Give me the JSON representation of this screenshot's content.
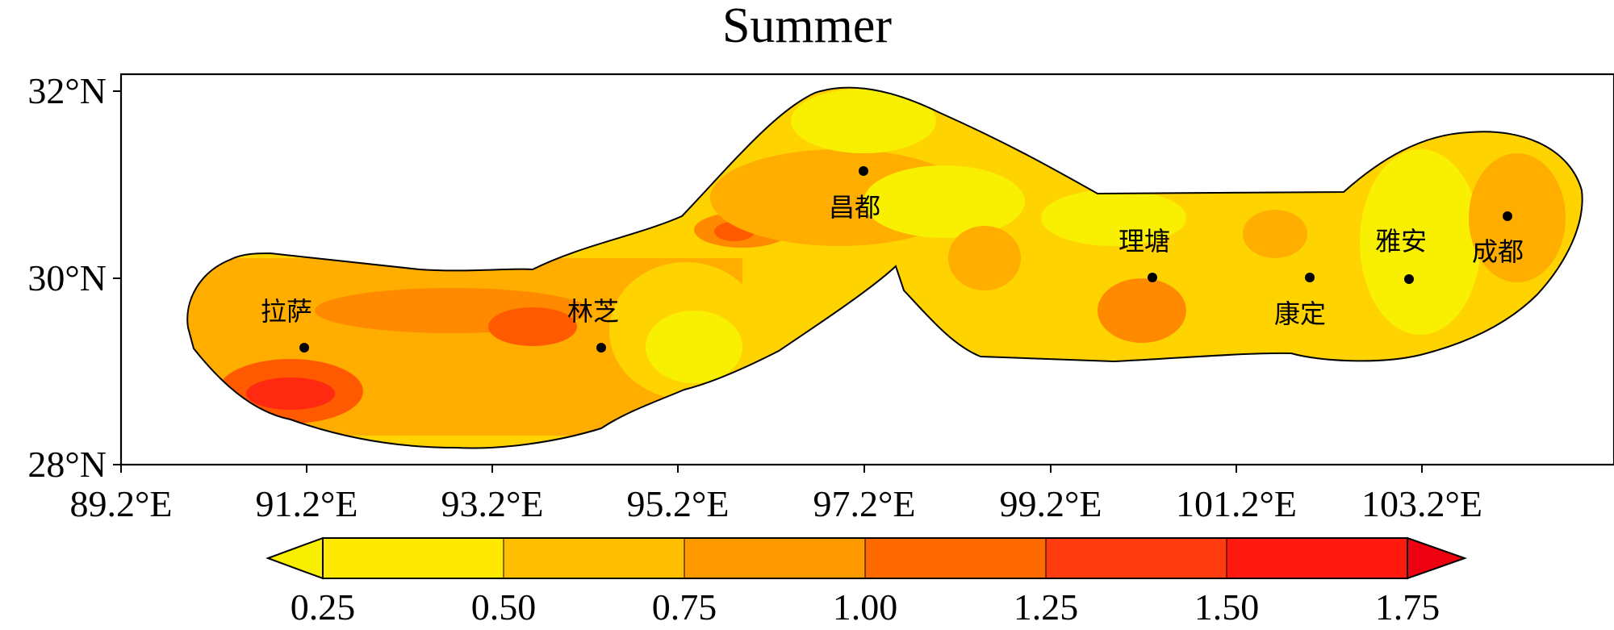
{
  "title": "Summer",
  "lat_ticks": [
    "32°N",
    "30°N",
    "28°N"
  ],
  "lon_ticks": [
    "89.2°E",
    "91.2°E",
    "93.2°E",
    "95.2°E",
    "97.2°E",
    "99.2°E",
    "101.2°E",
    "103.2°E"
  ],
  "colorbar": {
    "labels": [
      "0.25",
      "0.50",
      "0.75",
      "1.00",
      "1.25",
      "1.50",
      "1.75"
    ],
    "colors": [
      "#ffe900",
      "#ffbf00",
      "#ff9900",
      "#ff6a00",
      "#ff3c10",
      "#ff1a10",
      "#ee0010"
    ],
    "extend": "both"
  },
  "field_colors": {
    "low": "#f8f000",
    "mid_low": "#ffd300",
    "mid": "#ffae00",
    "mid_high": "#ff8a00",
    "high": "#ff5a00",
    "very_high": "#ff2a10"
  },
  "cities": [
    {
      "name": "拉萨",
      "lon": 91.2,
      "lat": 29.25
    },
    {
      "name": "林芝",
      "lon": 94.4,
      "lat": 29.25
    },
    {
      "name": "昌都",
      "lon": 97.2,
      "lat": 31.15
    },
    {
      "name": "理塘",
      "lon": 100.3,
      "lat": 30.0
    },
    {
      "name": "康定",
      "lon": 101.9,
      "lat": 30.0
    },
    {
      "name": "雅安",
      "lon": 103.0,
      "lat": 29.98
    },
    {
      "name": "成都",
      "lon": 104.0,
      "lat": 30.67
    }
  ]
}
